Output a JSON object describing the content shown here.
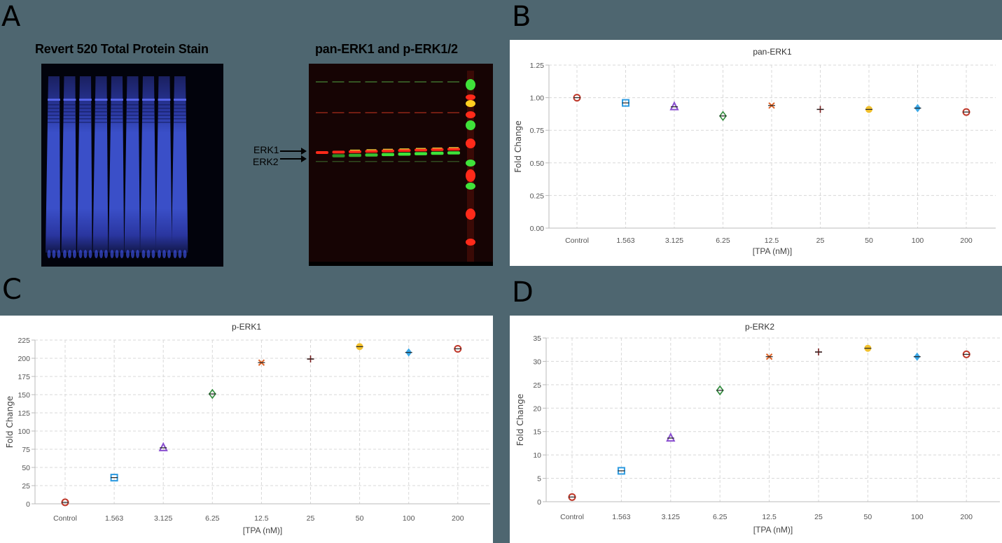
{
  "panels": {
    "A": {
      "letter": "A",
      "left_gel_title": "Revert 520 Total Protein Stain",
      "right_gel_title": "pan-ERK1 and p-ERK1/2",
      "band_labels": [
        "ERK1",
        "ERK2"
      ],
      "lane_count": 9,
      "colors": {
        "stain": "#3a4fc8",
        "erk_red": "#ff2a1a",
        "erk_green": "#3fe23a",
        "gel_bg": "#1a0505"
      }
    },
    "B": {
      "letter": "B"
    },
    "C": {
      "letter": "C"
    },
    "D": {
      "letter": "D"
    }
  },
  "chart_data": [
    {
      "panel": "B",
      "type": "scatter",
      "title": "pan-ERK1",
      "xlabel": "[TPA (nM)]",
      "ylabel": "Fold Change",
      "categories": [
        "Control",
        "1.563",
        "3.125",
        "6.25",
        "12.5",
        "25",
        "50",
        "100",
        "200"
      ],
      "values": [
        1.0,
        0.96,
        0.93,
        0.86,
        0.94,
        0.91,
        0.91,
        0.92,
        0.89
      ],
      "ylim": [
        0,
        1.25
      ],
      "yticks": [
        "0.00",
        "0.25",
        "0.50",
        "0.75",
        "1.00",
        "1.25"
      ],
      "ytick_values": [
        0,
        0.25,
        0.5,
        0.75,
        1.0,
        1.25
      ],
      "grid": true,
      "legend": "none"
    },
    {
      "panel": "C",
      "type": "scatter",
      "title": "p-ERK1",
      "xlabel": "[TPA (nM)]",
      "ylabel": "Fold Change",
      "categories": [
        "Control",
        "1.563",
        "3.125",
        "6.25",
        "12.5",
        "25",
        "50",
        "100",
        "200"
      ],
      "values": [
        2,
        36,
        77,
        151,
        194,
        199,
        216,
        208,
        213
      ],
      "ylim": [
        0,
        225
      ],
      "yticks": [
        "0",
        "25",
        "50",
        "75",
        "100",
        "125",
        "150",
        "175",
        "200",
        "225"
      ],
      "ytick_values": [
        0,
        25,
        50,
        75,
        100,
        125,
        150,
        175,
        200,
        225
      ],
      "grid": true,
      "legend": "none"
    },
    {
      "panel": "D",
      "type": "scatter",
      "title": "p-ERK2",
      "xlabel": "[TPA (nM)]",
      "ylabel": "Fold Change",
      "categories": [
        "Control",
        "1.563",
        "3.125",
        "6.25",
        "12.5",
        "25",
        "50",
        "100",
        "200"
      ],
      "values": [
        1.0,
        6.6,
        13.6,
        23.8,
        31.0,
        32.0,
        32.8,
        31.0,
        31.5
      ],
      "ylim": [
        0,
        35
      ],
      "yticks": [
        "0",
        "5",
        "10",
        "15",
        "20",
        "25",
        "30",
        "35"
      ],
      "ytick_values": [
        0,
        5,
        10,
        15,
        20,
        25,
        30,
        35
      ],
      "grid": true,
      "legend": "none"
    }
  ],
  "markers": [
    {
      "shape": "circle-open",
      "color": "#c0392b"
    },
    {
      "shape": "square-open",
      "color": "#2e9be0"
    },
    {
      "shape": "triangle-open",
      "color": "#8a4fd0"
    },
    {
      "shape": "diamond-open",
      "color": "#2e8b3a"
    },
    {
      "shape": "x",
      "color": "#e0662a"
    },
    {
      "shape": "plus",
      "color": "#7a1f1f"
    },
    {
      "shape": "circle-filled",
      "color": "#f2c12e"
    },
    {
      "shape": "diamond-filled",
      "color": "#3aa8e8"
    },
    {
      "shape": "circle-open",
      "color": "#c0392b"
    }
  ]
}
